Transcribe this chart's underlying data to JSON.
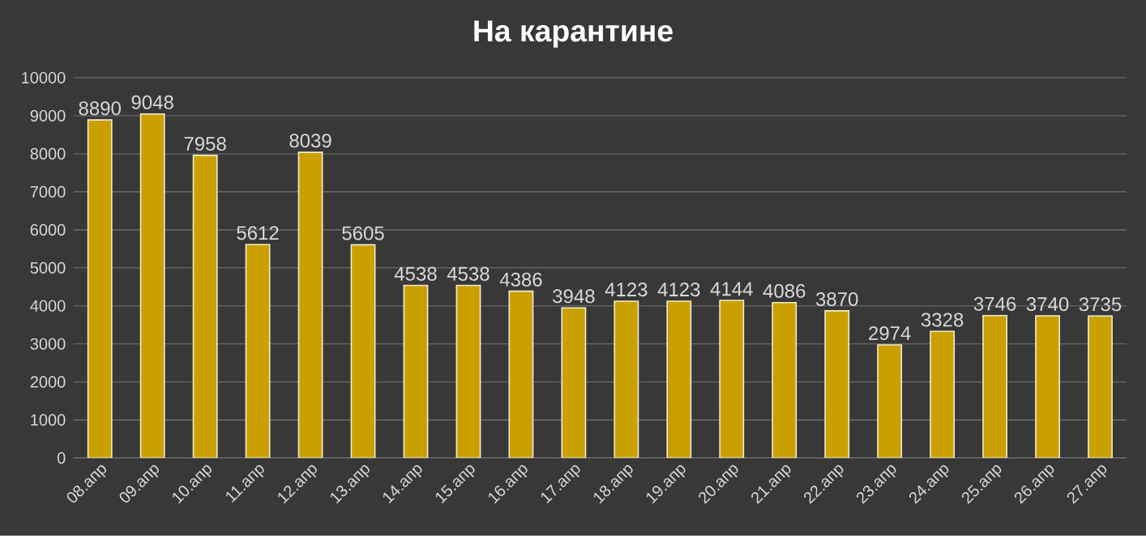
{
  "chart_data": {
    "type": "bar",
    "title": "На карантине",
    "categories": [
      "08.апр",
      "09.апр",
      "10.апр",
      "11.апр",
      "12.апр",
      "13.апр",
      "14.апр",
      "15.апр",
      "16.апр",
      "17.апр",
      "18.апр",
      "19.апр",
      "20.апр",
      "21.апр",
      "22.апр",
      "23.апр",
      "24.апр",
      "25.апр",
      "26.апр",
      "27.апр"
    ],
    "values": [
      8890,
      9048,
      7958,
      5612,
      8039,
      5605,
      4538,
      4538,
      4386,
      3948,
      4123,
      4123,
      4144,
      4086,
      3870,
      2974,
      3328,
      3746,
      3740,
      3735
    ],
    "color": "#c9a000",
    "ylim": [
      0,
      10000
    ],
    "yticks": [
      0,
      1000,
      2000,
      3000,
      4000,
      5000,
      6000,
      7000,
      8000,
      9000,
      10000
    ],
    "grid": "y",
    "data_labels": true
  }
}
